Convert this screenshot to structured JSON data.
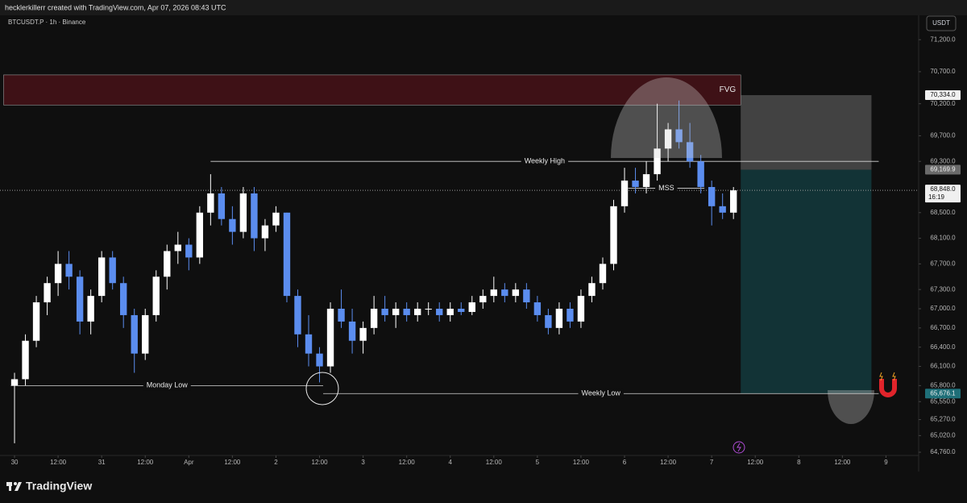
{
  "chart_data": {
    "type": "candlestick",
    "header": "hecklerkillerr created with TradingView.com, Apr 07, 2026 08:43 UTC",
    "symbol": "BTCUSDT.P · 1h · Binance",
    "currency": "USDT",
    "brand": "TradingView",
    "up_color": "#ffffff",
    "down_color": "#5b8def",
    "xlim": [
      -4,
      249
    ],
    "ylim": [
      64710,
      71580
    ],
    "xticks": [
      {
        "value": 0,
        "label": "30"
      },
      {
        "value": 12,
        "label": "12:00"
      },
      {
        "value": 24,
        "label": "31"
      },
      {
        "value": 36,
        "label": "12:00"
      },
      {
        "value": 48,
        "label": "Apr"
      },
      {
        "value": 60,
        "label": "12:00"
      },
      {
        "value": 72,
        "label": "2"
      },
      {
        "value": 84,
        "label": "12:00"
      },
      {
        "value": 96,
        "label": "3"
      },
      {
        "value": 108,
        "label": "12:00"
      },
      {
        "value": 120,
        "label": "4"
      },
      {
        "value": 132,
        "label": "12:00"
      },
      {
        "value": 144,
        "label": "5"
      },
      {
        "value": 156,
        "label": "12:00"
      },
      {
        "value": 168,
        "label": "6"
      },
      {
        "value": 180,
        "label": "12:00"
      },
      {
        "value": 192,
        "label": "7"
      },
      {
        "value": 204,
        "label": "12:00"
      },
      {
        "value": 216,
        "label": "8"
      },
      {
        "value": 228,
        "label": "12:00"
      },
      {
        "value": 240,
        "label": "9"
      }
    ],
    "yticks": [
      {
        "value": 71200,
        "label": "71,200.0"
      },
      {
        "value": 70700,
        "label": "70,700.0"
      },
      {
        "value": 70200,
        "label": "70,200.0"
      },
      {
        "value": 69700,
        "label": "69,700.0"
      },
      {
        "value": 69300,
        "label": "69,300.0"
      },
      {
        "value": 68500,
        "label": "68,500.0"
      },
      {
        "value": 68100,
        "label": "68,100.0"
      },
      {
        "value": 67700,
        "label": "67,700.0"
      },
      {
        "value": 67300,
        "label": "67,300.0"
      },
      {
        "value": 67000,
        "label": "67,000.0"
      },
      {
        "value": 66700,
        "label": "66,700.0"
      },
      {
        "value": 66400,
        "label": "66,400.0"
      },
      {
        "value": 66100,
        "label": "66,100.0"
      },
      {
        "value": 65800,
        "label": "65,800.0"
      },
      {
        "value": 65550,
        "label": "65,550.0"
      },
      {
        "value": 65270,
        "label": "65,270.0"
      },
      {
        "value": 65020,
        "label": "65,020.0"
      },
      {
        "value": 64760,
        "label": "64,760.0"
      }
    ],
    "x": [
      0,
      3,
      6,
      9,
      12,
      15,
      18,
      21,
      24,
      27,
      30,
      33,
      36,
      39,
      42,
      45,
      48,
      51,
      54,
      57,
      60,
      63,
      66,
      69,
      72,
      75,
      78,
      81,
      84,
      87,
      90,
      93,
      96,
      99,
      102,
      105,
      108,
      111,
      114,
      117,
      120,
      123,
      126,
      129,
      132,
      135,
      138,
      141,
      144,
      147,
      150,
      153,
      156,
      159,
      162,
      165,
      168,
      171,
      174,
      177,
      180,
      183,
      186,
      189,
      192,
      195,
      198
    ],
    "open": [
      65800,
      65900,
      66500,
      67100,
      67400,
      67700,
      67500,
      66800,
      67200,
      67800,
      67400,
      66900,
      66300,
      66900,
      67500,
      67900,
      68000,
      67800,
      68500,
      68800,
      68400,
      68200,
      68800,
      68100,
      68300,
      68500,
      67200,
      66600,
      66300,
      66100,
      67000,
      66800,
      66500,
      66700,
      67000,
      66900,
      67000,
      66900,
      67000,
      67000,
      66900,
      67000,
      66950,
      67100,
      67200,
      67300,
      67200,
      67300,
      67100,
      66900,
      66700,
      67000,
      66800,
      67200,
      67400,
      67700,
      68600,
      69000,
      68900,
      69100,
      69500,
      69800,
      69600,
      69300,
      68900,
      68600,
      68500
    ],
    "high": [
      66000,
      66600,
      67200,
      67500,
      67900,
      67900,
      67600,
      67300,
      67900,
      67900,
      67500,
      67000,
      67000,
      67600,
      68000,
      68200,
      68100,
      68600,
      69100,
      68900,
      68600,
      68900,
      68900,
      68400,
      68600,
      68500,
      67300,
      66900,
      66400,
      67100,
      67300,
      67000,
      66800,
      67200,
      67200,
      67100,
      67100,
      67100,
      67100,
      67100,
      67100,
      67100,
      67200,
      67300,
      67500,
      67400,
      67400,
      67400,
      67200,
      67000,
      67100,
      67100,
      67300,
      67500,
      67800,
      68700,
      69200,
      69200,
      69300,
      70200,
      69900,
      70250,
      69900,
      69400,
      69000,
      68800,
      68900
    ],
    "low": [
      64900,
      65800,
      66400,
      66900,
      67200,
      67300,
      66600,
      66600,
      67100,
      67300,
      66700,
      66000,
      66200,
      66800,
      67300,
      67700,
      67600,
      67700,
      68300,
      68300,
      68000,
      68100,
      67900,
      67900,
      68200,
      67100,
      66400,
      66100,
      65850,
      66000,
      66700,
      66300,
      66300,
      66600,
      66800,
      66700,
      66800,
      66800,
      66900,
      66800,
      66800,
      66900,
      66900,
      67000,
      67100,
      67100,
      67100,
      67000,
      66800,
      66600,
      66600,
      66700,
      66700,
      67100,
      67300,
      67600,
      68500,
      68800,
      68800,
      69000,
      69300,
      69500,
      69200,
      68800,
      68300,
      68400,
      68400
    ],
    "close": [
      65900,
      66500,
      67100,
      67400,
      67700,
      67500,
      66800,
      67200,
      67800,
      67400,
      66900,
      66300,
      66900,
      67500,
      67900,
      68000,
      67800,
      68500,
      68800,
      68400,
      68200,
      68800,
      68100,
      68300,
      68500,
      67200,
      66600,
      66300,
      66100,
      67000,
      66800,
      66500,
      66700,
      67000,
      66900,
      67000,
      66900,
      67000,
      67000,
      66900,
      67000,
      66950,
      67100,
      67200,
      67300,
      67200,
      67300,
      67100,
      66900,
      66700,
      67000,
      66800,
      67200,
      67400,
      67700,
      68600,
      69000,
      68900,
      69100,
      69500,
      69800,
      69600,
      69300,
      68900,
      68600,
      68500,
      68848
    ],
    "annotations": [
      {
        "label": "Weekly High",
        "value": 69300,
        "x": [
          54,
          238
        ]
      },
      {
        "label": "Monday Low",
        "value": 65800,
        "x": [
          -1,
          85
        ]
      },
      {
        "label": "Weekly Low",
        "value": 65676.1,
        "x": [
          85,
          238
        ]
      },
      {
        "label": "MSS",
        "value": 68880,
        "x": [
          169,
          190
        ]
      }
    ],
    "fvg": {
      "label": "FVG",
      "range": [
        70180,
        70650
      ],
      "x": [
        -3,
        200
      ]
    },
    "position": {
      "x": [
        200,
        236
      ],
      "stop": {
        "value": 70334,
        "label": "70,334.0"
      },
      "entry": {
        "value": 69169.9,
        "label": "69,169.9"
      },
      "target": {
        "value": 65676.1,
        "label": "65,676.1"
      }
    },
    "last_price": {
      "value": 68848,
      "label": "68,848.0",
      "countdown": "16:19"
    }
  }
}
